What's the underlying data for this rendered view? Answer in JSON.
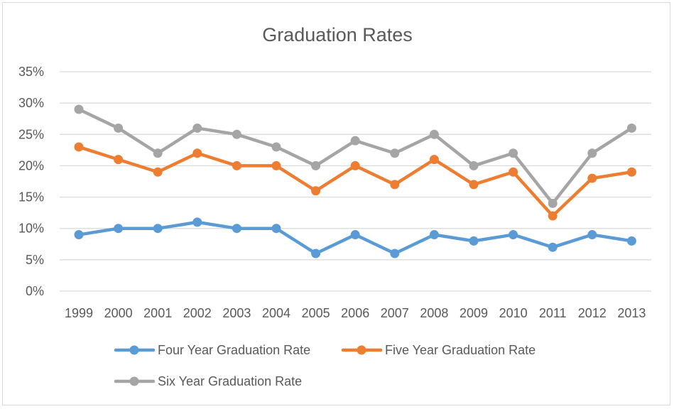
{
  "chart_data": {
    "type": "line",
    "title": "Graduation Rates",
    "xlabel": "",
    "ylabel": "",
    "categories": [
      "1999",
      "2000",
      "2001",
      "2002",
      "2003",
      "2004",
      "2005",
      "2006",
      "2007",
      "2008",
      "2009",
      "2010",
      "2011",
      "2012",
      "2013"
    ],
    "ylim": [
      0,
      35
    ],
    "yticks": [
      "0%",
      "5%",
      "10%",
      "15%",
      "20%",
      "25%",
      "30%",
      "35%"
    ],
    "grid": true,
    "legend_position": "bottom",
    "series": [
      {
        "name": "Four Year Graduation Rate",
        "color": "#5b9bd5",
        "values": [
          9,
          10,
          10,
          11,
          10,
          10,
          6,
          9,
          6,
          9,
          8,
          9,
          7,
          9,
          8
        ]
      },
      {
        "name": "Five Year Graduation Rate",
        "color": "#ed7d31",
        "values": [
          23,
          21,
          19,
          22,
          20,
          20,
          16,
          20,
          17,
          21,
          17,
          19,
          12,
          18,
          19
        ]
      },
      {
        "name": "Six Year Graduation Rate",
        "color": "#a5a5a5",
        "values": [
          29,
          26,
          22,
          26,
          25,
          23,
          20,
          24,
          22,
          25,
          20,
          22,
          14,
          22,
          26
        ]
      }
    ]
  }
}
